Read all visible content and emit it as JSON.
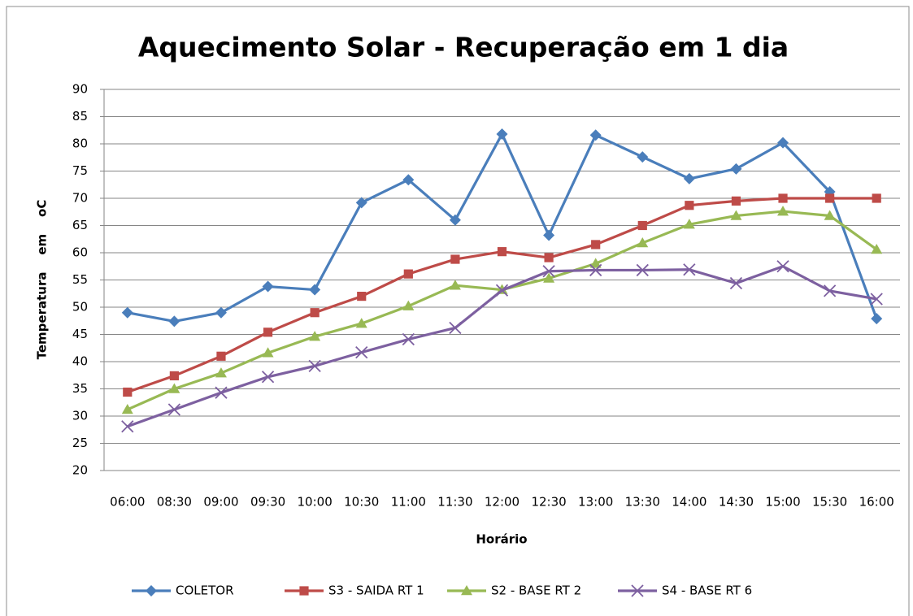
{
  "chart_data": {
    "type": "line",
    "title": "Aquecimento Solar - Recuperação em 1 dia",
    "x_label": "Horário",
    "y_label": "Temperatura    em    oC",
    "categories": [
      "06:00",
      "08:30",
      "09:00",
      "09:30",
      "10:00",
      "10:30",
      "11:00",
      "11:30",
      "12:00",
      "12:30",
      "13:00",
      "13:30",
      "14:00",
      "14:30",
      "15:00",
      "15:30",
      "16:00"
    ],
    "series": [
      {
        "name": "COLETOR",
        "color": "#4a7ebb",
        "marker": "diamond",
        "values": [
          49,
          47.4,
          49,
          53.8,
          53.2,
          69.2,
          73.4,
          66,
          81.8,
          63.2,
          81.6,
          77.6,
          73.6,
          75.4,
          80.2,
          71.2,
          47.9
        ]
      },
      {
        "name": "S3 - SAIDA RT 1",
        "color": "#be4b48",
        "marker": "square",
        "values": [
          34.4,
          37.4,
          41,
          45.4,
          49,
          52,
          56.1,
          58.8,
          60.2,
          59.1,
          61.5,
          65,
          68.7,
          69.5,
          70,
          70,
          70
        ]
      },
      {
        "name": "S2 - BASE RT 2",
        "color": "#98b954",
        "marker": "triangle",
        "values": [
          31.2,
          35,
          37.9,
          41.6,
          44.6,
          47,
          50.2,
          54,
          53.2,
          55.3,
          58,
          61.8,
          65.2,
          66.8,
          67.6,
          66.8,
          60.6
        ]
      },
      {
        "name": "S4 - BASE RT 6",
        "color": "#7d60a0",
        "marker": "x",
        "values": [
          28.1,
          31.2,
          34.3,
          37.2,
          39.2,
          41.7,
          44.1,
          46.2,
          53.1,
          56.6,
          56.8,
          56.8,
          56.9,
          54.4,
          57.5,
          53,
          51.5
        ]
      }
    ],
    "ylim": [
      20,
      90
    ],
    "yticks": [
      20,
      25,
      30,
      35,
      40,
      45,
      50,
      55,
      60,
      65,
      70,
      75,
      80,
      85,
      90
    ],
    "grid": true,
    "legend": "bottom"
  }
}
